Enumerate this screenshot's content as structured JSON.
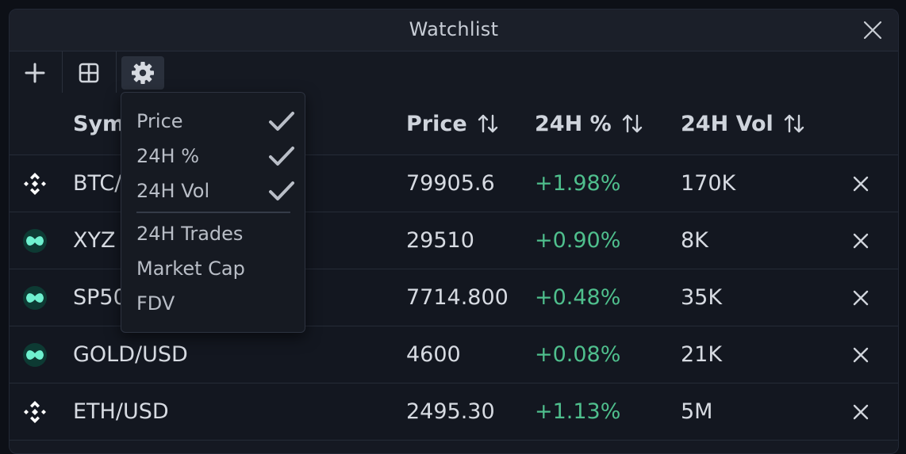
{
  "window": {
    "title": "Watchlist"
  },
  "table": {
    "headers": {
      "symbol": "Sym",
      "price": "Price",
      "pct": "24H %",
      "vol": "24H Vol"
    },
    "rows": [
      {
        "icon": "binance-icon",
        "symbol": "BTC/",
        "price": "79905.6",
        "pct": "+1.98%",
        "vol": "170K"
      },
      {
        "icon": "hyperliquid-icon",
        "symbol": "XYZ",
        "price": "29510",
        "pct": "+0.90%",
        "vol": "8K"
      },
      {
        "icon": "hyperliquid-icon",
        "symbol": "SP50",
        "price": "7714.800",
        "pct": "+0.48%",
        "vol": "35K"
      },
      {
        "icon": "hyperliquid-icon",
        "symbol": "GOLD/USD",
        "price": "4600",
        "pct": "+0.08%",
        "vol": "21K"
      },
      {
        "icon": "binance-icon",
        "symbol": "ETH/USD",
        "price": "2495.30",
        "pct": "+1.13%",
        "vol": "5M"
      }
    ]
  },
  "columns_menu": {
    "items": [
      {
        "label": "Price",
        "checked": true
      },
      {
        "label": "24H %",
        "checked": true
      },
      {
        "label": "24H Vol",
        "checked": true
      },
      {
        "label": "24H Trades",
        "checked": false
      },
      {
        "label": "Market Cap",
        "checked": false
      },
      {
        "label": "FDV",
        "checked": false
      }
    ]
  },
  "colors": {
    "positive": "#4fbf8d",
    "hl_teal": "#6ff0cf",
    "background": "#151922"
  }
}
